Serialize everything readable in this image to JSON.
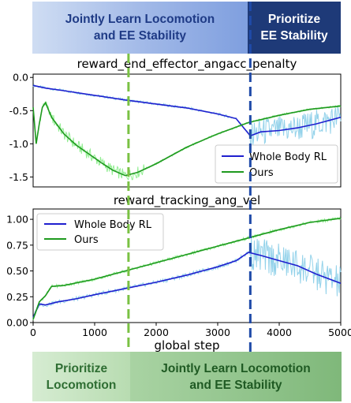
{
  "banners": {
    "top_left": "Jointly Learn Locomotion\nand EE Stability",
    "top_right": "Prioritize\nEE Stability",
    "bottom_left": "Prioritize\nLocomotion",
    "bottom_right": "Jointly Learn Locomotion\nand EE Stability"
  },
  "colors": {
    "whole_body_rl": "#1f1fcf",
    "whole_body_rl_band": "#87cde8",
    "ours": "#1f9a1f",
    "ours_band": "#86ec86",
    "green_divider": "#7ac143",
    "blue_divider": "#1f4aa8"
  },
  "dividers": {
    "green_step": 1550,
    "blue_step": 3530
  },
  "chart_data": [
    {
      "type": "line",
      "title": "reward_end_effector_angacc_penalty",
      "xlim": [
        0,
        5000
      ],
      "ylim": [
        -1.65,
        0.05
      ],
      "yticks": [
        "0.0",
        "-0.5",
        "-1.0",
        "-1.5"
      ],
      "ytick_values": [
        0.0,
        -0.5,
        -1.0,
        -1.5
      ],
      "legend": "bottom-right",
      "series": [
        {
          "name": "Whole Body RL",
          "x": [
            0,
            200,
            500,
            1000,
            1500,
            2000,
            2500,
            3000,
            3300,
            3530,
            3700,
            4000,
            4300,
            4600,
            5000
          ],
          "values": [
            -0.12,
            -0.16,
            -0.2,
            -0.27,
            -0.34,
            -0.4,
            -0.46,
            -0.55,
            -0.62,
            -0.88,
            -0.82,
            -0.8,
            -0.76,
            -0.7,
            -0.6
          ]
        },
        {
          "name": "Ours",
          "x": [
            0,
            50,
            100,
            150,
            200,
            300,
            500,
            700,
            900,
            1100,
            1300,
            1500,
            1700,
            2000,
            2500,
            3000,
            3500,
            4000,
            4500,
            5000
          ],
          "values": [
            -0.45,
            -1.0,
            -0.7,
            -0.45,
            -0.38,
            -0.6,
            -0.85,
            -1.02,
            -1.15,
            -1.28,
            -1.4,
            -1.48,
            -1.43,
            -1.3,
            -1.05,
            -0.85,
            -0.68,
            -0.57,
            -0.48,
            -0.43
          ]
        }
      ]
    },
    {
      "type": "line",
      "title": "reward_tracking_ang_vel",
      "xlabel": "global step",
      "xlim": [
        0,
        5000
      ],
      "ylim": [
        0,
        1.1
      ],
      "xticks": [
        "0",
        "1000",
        "2000",
        "3000",
        "4000",
        "5000"
      ],
      "xtick_values": [
        0,
        1000,
        2000,
        3000,
        4000,
        5000
      ],
      "yticks": [
        "1.00",
        "0.75",
        "0.50",
        "0.25",
        "0.00"
      ],
      "ytick_values": [
        1.0,
        0.75,
        0.5,
        0.25,
        0.0
      ],
      "legend": "top-left",
      "series": [
        {
          "name": "Whole Body RL",
          "x": [
            0,
            100,
            200,
            400,
            700,
            1000,
            1500,
            2000,
            2500,
            3000,
            3300,
            3500,
            3700,
            4000,
            4300,
            4600,
            5000
          ],
          "values": [
            0.05,
            0.18,
            0.17,
            0.2,
            0.23,
            0.27,
            0.33,
            0.39,
            0.46,
            0.54,
            0.6,
            0.68,
            0.65,
            0.6,
            0.55,
            0.47,
            0.38
          ]
        },
        {
          "name": "Ours",
          "x": [
            0,
            100,
            200,
            300,
            500,
            1000,
            1500,
            2000,
            2500,
            3000,
            3500,
            4000,
            4500,
            5000
          ],
          "values": [
            0.03,
            0.2,
            0.26,
            0.35,
            0.36,
            0.42,
            0.5,
            0.58,
            0.66,
            0.74,
            0.82,
            0.9,
            0.97,
            1.01
          ]
        }
      ]
    }
  ]
}
